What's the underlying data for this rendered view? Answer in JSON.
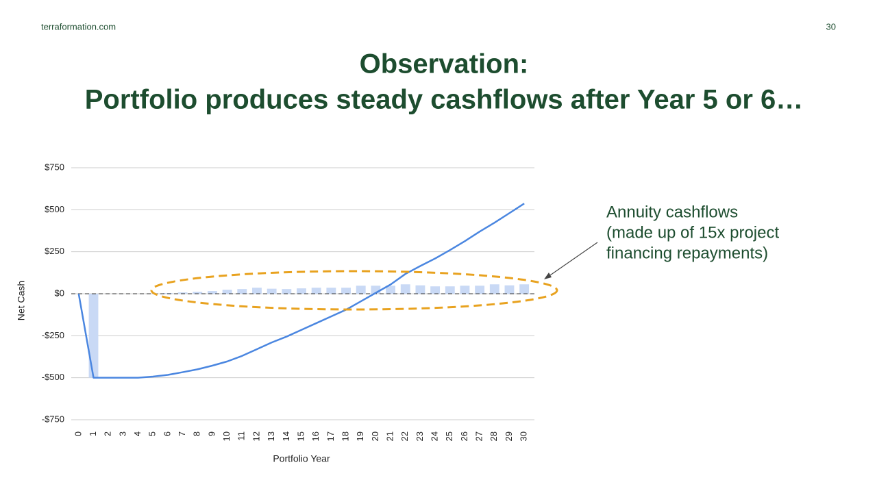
{
  "header": {
    "site": "terraformation.com",
    "page": "30"
  },
  "chart_data": {
    "type": "combo",
    "title": [
      "Observation:",
      "Portfolio produces steady cashflows after Year 5 or 6…"
    ],
    "x_label": "Portfolio Year",
    "y_label": "Net Cash",
    "annotation": [
      "Annuity cashflows",
      "(made up of 15x project",
      "financing repayments)"
    ],
    "categories": [
      "0",
      "1",
      "2",
      "3",
      "4",
      "5",
      "6",
      "7",
      "8",
      "9",
      "10",
      "11",
      "12",
      "13",
      "14",
      "15",
      "16",
      "17",
      "18",
      "19",
      "20",
      "21",
      "22",
      "23",
      "24",
      "25",
      "26",
      "27",
      "28",
      "29",
      "30"
    ],
    "series": [
      {
        "type": "bar",
        "color": "#c9d9f5",
        "values": [
          0,
          -500,
          0,
          0,
          0,
          0,
          4,
          8,
          12,
          16,
          24,
          28,
          36,
          30,
          28,
          32,
          36,
          36,
          36,
          48,
          48,
          48,
          56,
          50,
          44,
          44,
          48,
          48,
          56,
          50,
          56
        ]
      },
      {
        "type": "line",
        "color": "#4a86e0",
        "values": [
          0,
          -500,
          -500,
          -500,
          -500,
          -493,
          -483,
          -467,
          -450,
          -428,
          -403,
          -370,
          -330,
          -290,
          -255,
          -215,
          -175,
          -135,
          -95,
          -45,
          5,
          55,
          118,
          165,
          210,
          260,
          313,
          370,
          423,
          480,
          537
        ]
      }
    ],
    "ylim": [
      -750,
      750
    ],
    "yticks": [
      {
        "value": 750,
        "label": "$750"
      },
      {
        "value": 500,
        "label": "$500"
      },
      {
        "value": 250,
        "label": "$250"
      },
      {
        "value": 0,
        "label": "$0"
      },
      {
        "value": -250,
        "label": "-$250"
      },
      {
        "value": -500,
        "label": "-$500"
      },
      {
        "value": -750,
        "label": "-$750"
      }
    ],
    "grid": true
  }
}
